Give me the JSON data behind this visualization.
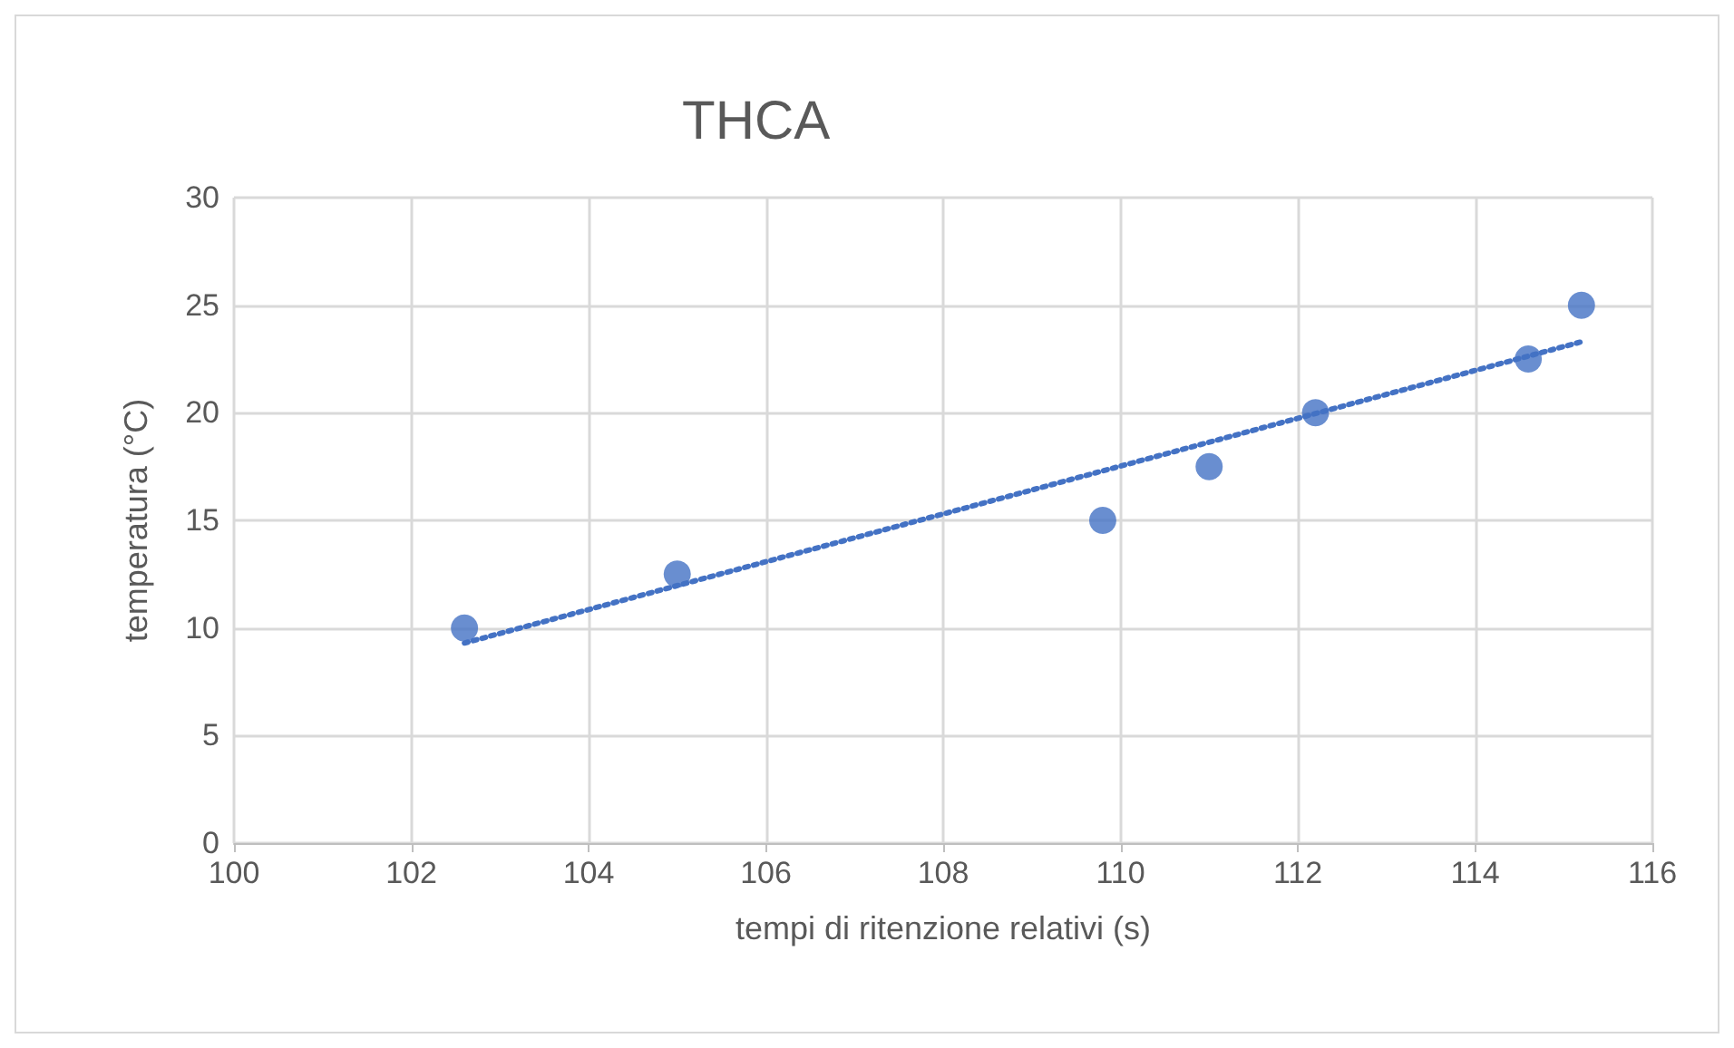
{
  "chart_data": {
    "type": "scatter",
    "title": "THCA",
    "xlabel": "tempi di ritenzione relativi (s)",
    "ylabel": "temperatura (°C)",
    "xlim": [
      100,
      116
    ],
    "xticks": [
      100,
      102,
      104,
      106,
      108,
      110,
      112,
      114,
      116
    ],
    "ylim": [
      0,
      30
    ],
    "yticks": [
      0,
      5,
      10,
      15,
      20,
      25,
      30
    ],
    "grid": true,
    "series": [
      {
        "color": "#4472c4",
        "marker": "circle",
        "x": [
          102.6,
          105,
          109.8,
          111,
          112.2,
          114.6,
          115.2
        ],
        "values": [
          10,
          12.5,
          15,
          17.5,
          20,
          22.5,
          25
        ]
      },
      {
        "type": "line",
        "color": "#4472c4",
        "line_style": "dotted",
        "marker": "none",
        "x": [
          102.6,
          115.2
        ],
        "values": [
          9.3,
          23.3
        ]
      }
    ]
  }
}
